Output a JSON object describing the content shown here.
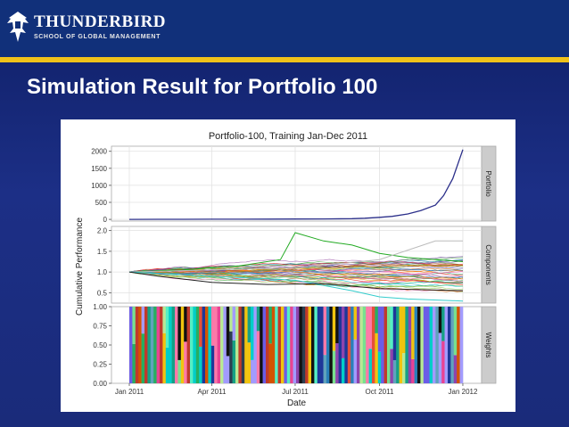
{
  "header": {
    "brand_name": "THUNDERBIRD",
    "brand_sub": "SCHOOL OF GLOBAL MANAGEMENT",
    "logo_icon": "thunderbird-emblem-icon",
    "header_color": "#11307a",
    "rule_color": "#f0c21a"
  },
  "slide": {
    "title": "Simulation Result for Portfolio 100",
    "background": "#1a2b7a"
  },
  "chart_data": {
    "type": "line",
    "title": "Portfolio-100, Training Jan-Dec 2011",
    "xlabel": "Date",
    "ylabel": "Cumulative Performance",
    "x_ticks": [
      "Jan 2011",
      "Apr 2011",
      "Jul 2011",
      "Oct 2011",
      "Jan 2012"
    ],
    "grid": true,
    "panels": [
      {
        "name": "Portfolio",
        "ylim": [
          -50,
          2150
        ],
        "y_ticks": [
          "0",
          "500",
          "1000",
          "1500",
          "2000"
        ],
        "series": [
          {
            "color": "#2b2f8a",
            "x": [
              "2011-01-01",
              "2011-02-01",
              "2011-03-01",
              "2011-04-01",
              "2011-05-01",
              "2011-06-01",
              "2011-07-01",
              "2011-08-01",
              "2011-09-01",
              "2011-09-15",
              "2011-10-01",
              "2011-10-15",
              "2011-11-01",
              "2011-11-15",
              "2011-12-01",
              "2011-12-10",
              "2011-12-20",
              "2011-12-31"
            ],
            "values": [
              1,
              2,
              3,
              4,
              5,
              7,
              9,
              12,
              20,
              35,
              60,
              90,
              160,
              260,
              420,
              700,
              1200,
              2050
            ]
          }
        ]
      },
      {
        "name": "Components",
        "ylim": [
          0.25,
          2.1
        ],
        "y_ticks": [
          "0.5",
          "1.0",
          "1.5",
          "2.0"
        ],
        "series_count": 100,
        "value_range": [
          0.3,
          1.95
        ],
        "highlighted": [
          {
            "color": "#22aa22",
            "x": [
              "2011-01-01",
              "2011-03-01",
              "2011-05-01",
              "2011-06-15",
              "2011-07-01",
              "2011-08-01",
              "2011-09-01",
              "2011-10-01",
              "2011-11-01",
              "2011-12-01",
              "2011-12-31"
            ],
            "values": [
              1.0,
              1.05,
              1.15,
              1.3,
              1.95,
              1.75,
              1.65,
              1.45,
              1.35,
              1.3,
              1.25
            ]
          },
          {
            "color": "#bbbbbb",
            "x": [
              "2011-01-01",
              "2011-04-01",
              "2011-07-01",
              "2011-10-01",
              "2011-12-01",
              "2011-12-31"
            ],
            "values": [
              1.0,
              1.05,
              1.1,
              1.3,
              1.75,
              1.75
            ]
          },
          {
            "color": "#33cccc",
            "x": [
              "2011-01-01",
              "2011-04-01",
              "2011-07-01",
              "2011-09-01",
              "2011-10-01",
              "2011-11-01",
              "2011-12-31"
            ],
            "values": [
              1.0,
              0.9,
              0.8,
              0.55,
              0.4,
              0.35,
              0.3
            ]
          },
          {
            "color": "#222222",
            "x": [
              "2011-01-01",
              "2011-02-01",
              "2011-04-01",
              "2011-06-01",
              "2011-08-01",
              "2011-10-01",
              "2011-12-31"
            ],
            "values": [
              1.0,
              0.9,
              0.75,
              0.7,
              0.72,
              0.6,
              0.55
            ]
          }
        ]
      },
      {
        "name": "Weights",
        "ylim": [
          0,
          1
        ],
        "y_ticks": [
          "0.00",
          "0.25",
          "0.50",
          "0.75",
          "1.00"
        ],
        "encoding": "stacked allocation across components, one colour per component"
      }
    ]
  }
}
